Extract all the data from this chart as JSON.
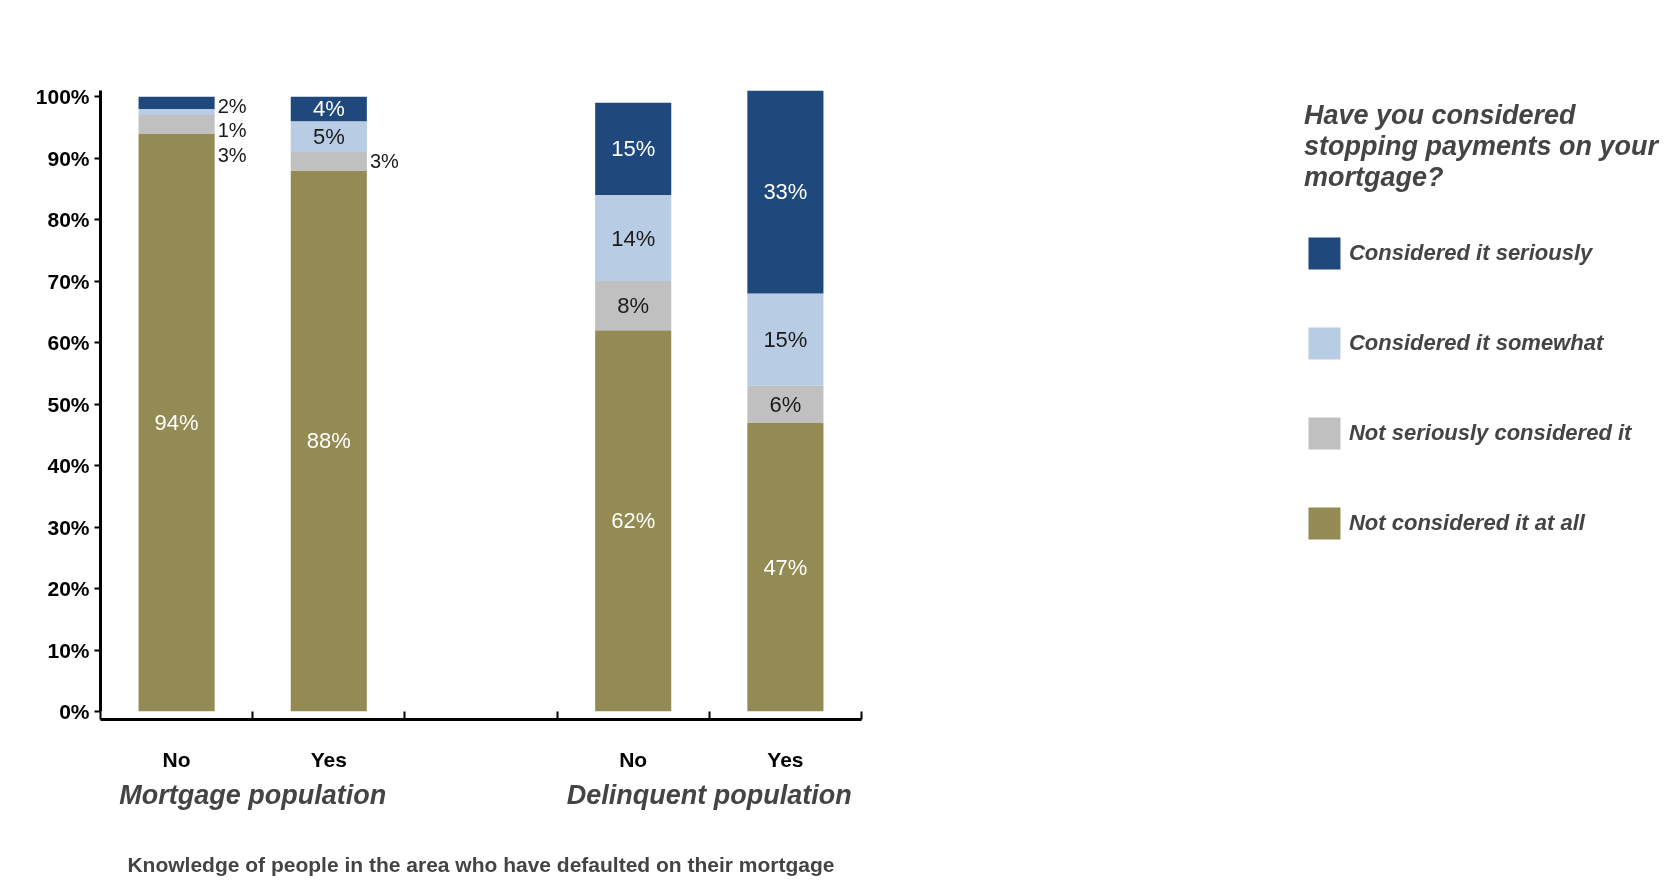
{
  "chart_data": {
    "type": "bar",
    "stacked": true,
    "legend_title": "Have you considered stopping payments on your mortgage?",
    "xlabel": "Knowledge of people in the area who have defaulted on their mortgage",
    "annotations": [
      "Mortgage population",
      "Delinquent population"
    ],
    "categories": [
      "No",
      "Yes",
      null,
      "No",
      "Yes"
    ],
    "series": [
      {
        "name": "Not considered it at all",
        "color": "#948a54",
        "values": [
          94,
          88,
          null,
          62,
          47
        ],
        "value_labels": [
          "94%",
          "88%",
          null,
          "62%",
          "47%"
        ]
      },
      {
        "name": "Not seriously considered it",
        "color": "#c0c0c0",
        "values": [
          3,
          3,
          null,
          8,
          6
        ],
        "value_labels": [
          "3%",
          "3%",
          null,
          "8%",
          "6%"
        ]
      },
      {
        "name": "Considered it somewhat",
        "color": "#b8cce4",
        "values": [
          1,
          5,
          null,
          14,
          15
        ],
        "value_labels": [
          "1%",
          "5%",
          null,
          "14%",
          "15%"
        ]
      },
      {
        "name": "Considered it seriously",
        "color": "#1f497d",
        "values": [
          2,
          4,
          null,
          15,
          33
        ],
        "value_labels": [
          "2%",
          "4%",
          null,
          "15%",
          "33%"
        ]
      }
    ],
    "ylim": [
      0,
      101
    ],
    "yticks": [
      {
        "value": 0,
        "label": "0%"
      },
      {
        "value": 10,
        "label": "10%"
      },
      {
        "value": 20,
        "label": "20%"
      },
      {
        "value": 30,
        "label": "30%"
      },
      {
        "value": 40,
        "label": "40%"
      },
      {
        "value": 50,
        "label": "50%"
      },
      {
        "value": 60,
        "label": "60%"
      },
      {
        "value": 70,
        "label": "70%"
      },
      {
        "value": 80,
        "label": "80%"
      },
      {
        "value": 90,
        "label": "90%"
      },
      {
        "value": 100,
        "label": "100%"
      }
    ],
    "grid": false,
    "legend": "right"
  }
}
